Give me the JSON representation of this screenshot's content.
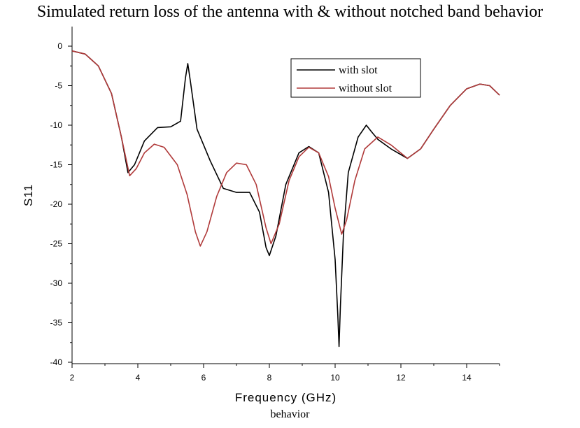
{
  "title": "Simulated return loss of the antenna with & without notched band behavior",
  "caption": "behavior",
  "chart_data": {
    "type": "line",
    "xlabel": "Frequency (GHz)",
    "ylabel": "S11",
    "xlim": [
      2,
      15
    ],
    "ylim": [
      -40,
      5
    ],
    "x_ticks": [
      2,
      4,
      6,
      8,
      10,
      12,
      14
    ],
    "y_ticks": [
      0,
      -5,
      -10,
      -15,
      -20,
      -25,
      -30,
      -35,
      -40
    ],
    "grid": false,
    "legend_position": "top-right",
    "series": [
      {
        "name": "with slot",
        "color": "#000000",
        "points": [
          [
            2.0,
            -0.6
          ],
          [
            2.4,
            -1.0
          ],
          [
            2.8,
            -2.5
          ],
          [
            3.2,
            -6.0
          ],
          [
            3.5,
            -11.5
          ],
          [
            3.7,
            -16.0
          ],
          [
            3.9,
            -15.0
          ],
          [
            4.2,
            -12.0
          ],
          [
            4.6,
            -10.3
          ],
          [
            5.0,
            -10.2
          ],
          [
            5.3,
            -9.5
          ],
          [
            5.45,
            -4.0
          ],
          [
            5.52,
            -2.2
          ],
          [
            5.6,
            -4.5
          ],
          [
            5.8,
            -10.5
          ],
          [
            6.2,
            -14.5
          ],
          [
            6.6,
            -18.0
          ],
          [
            7.0,
            -18.5
          ],
          [
            7.4,
            -18.5
          ],
          [
            7.7,
            -21.0
          ],
          [
            7.9,
            -25.5
          ],
          [
            8.0,
            -26.5
          ],
          [
            8.2,
            -24.0
          ],
          [
            8.5,
            -17.5
          ],
          [
            8.9,
            -13.5
          ],
          [
            9.2,
            -12.7
          ],
          [
            9.5,
            -13.5
          ],
          [
            9.8,
            -18.5
          ],
          [
            10.0,
            -27.0
          ],
          [
            10.08,
            -34.0
          ],
          [
            10.12,
            -38.0
          ],
          [
            10.16,
            -33.0
          ],
          [
            10.25,
            -24.0
          ],
          [
            10.4,
            -16.0
          ],
          [
            10.7,
            -11.5
          ],
          [
            10.95,
            -10.0
          ],
          [
            11.1,
            -10.8
          ],
          [
            11.3,
            -11.8
          ],
          [
            11.7,
            -13.0
          ],
          [
            12.2,
            -14.2
          ],
          [
            12.6,
            -13.0
          ],
          [
            13.0,
            -10.5
          ],
          [
            13.5,
            -7.5
          ],
          [
            14.0,
            -5.4
          ],
          [
            14.4,
            -4.8
          ],
          [
            14.7,
            -5.0
          ],
          [
            15.0,
            -6.2
          ]
        ]
      },
      {
        "name": "without slot",
        "color": "#b03a3a",
        "points": [
          [
            2.0,
            -0.6
          ],
          [
            2.4,
            -1.0
          ],
          [
            2.8,
            -2.5
          ],
          [
            3.2,
            -6.0
          ],
          [
            3.5,
            -11.5
          ],
          [
            3.75,
            -16.4
          ],
          [
            3.95,
            -15.5
          ],
          [
            4.2,
            -13.5
          ],
          [
            4.5,
            -12.4
          ],
          [
            4.8,
            -12.8
          ],
          [
            5.2,
            -15.0
          ],
          [
            5.5,
            -18.8
          ],
          [
            5.75,
            -23.5
          ],
          [
            5.9,
            -25.3
          ],
          [
            6.1,
            -23.5
          ],
          [
            6.4,
            -19.0
          ],
          [
            6.7,
            -16.0
          ],
          [
            7.0,
            -14.8
          ],
          [
            7.3,
            -15.0
          ],
          [
            7.6,
            -17.5
          ],
          [
            7.9,
            -23.0
          ],
          [
            8.05,
            -25.0
          ],
          [
            8.3,
            -22.5
          ],
          [
            8.6,
            -17.0
          ],
          [
            8.9,
            -14.0
          ],
          [
            9.2,
            -12.8
          ],
          [
            9.5,
            -13.5
          ],
          [
            9.8,
            -16.5
          ],
          [
            10.0,
            -20.5
          ],
          [
            10.2,
            -23.8
          ],
          [
            10.35,
            -22.0
          ],
          [
            10.6,
            -17.0
          ],
          [
            10.9,
            -13.0
          ],
          [
            11.3,
            -11.5
          ],
          [
            11.7,
            -12.5
          ],
          [
            12.2,
            -14.2
          ],
          [
            12.6,
            -13.0
          ],
          [
            13.0,
            -10.5
          ],
          [
            13.5,
            -7.5
          ],
          [
            14.0,
            -5.4
          ],
          [
            14.4,
            -4.8
          ],
          [
            14.7,
            -5.0
          ],
          [
            15.0,
            -6.2
          ]
        ]
      }
    ]
  }
}
